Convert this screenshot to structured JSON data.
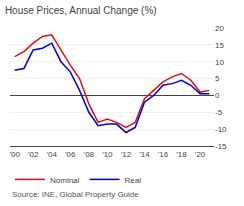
{
  "chart_data": {
    "type": "line",
    "title": "House Prices, Annual Change (%)",
    "x": [
      2000,
      2001,
      2002,
      2003,
      2004,
      2005,
      2006,
      2007,
      2008,
      2009,
      2010,
      2011,
      2012,
      2013,
      2014,
      2015,
      2016,
      2017,
      2018,
      2019,
      2020,
      2021
    ],
    "series": [
      {
        "name": "Nominal",
        "color": "#dd1111",
        "values": [
          11.5,
          13.0,
          15.5,
          17.5,
          18.0,
          13.5,
          9.0,
          5.0,
          -2.5,
          -8.0,
          -7.0,
          -8.0,
          -9.5,
          -8.0,
          -1.0,
          1.5,
          4.0,
          5.5,
          6.5,
          4.5,
          1.0,
          1.5
        ]
      },
      {
        "name": "Real",
        "color": "#0000cc",
        "values": [
          7.5,
          8.0,
          13.5,
          14.0,
          15.5,
          10.0,
          7.0,
          1.5,
          -5.0,
          -9.0,
          -8.5,
          -8.5,
          -11.0,
          -9.5,
          -2.0,
          0.0,
          3.0,
          3.5,
          4.5,
          3.0,
          0.5,
          0.5
        ]
      }
    ],
    "xlim": [
      1999.5,
      2021.5
    ],
    "xticks": [
      {
        "value": 2000,
        "label": "'00"
      },
      {
        "value": 2002,
        "label": "'02"
      },
      {
        "value": 2004,
        "label": "'04"
      },
      {
        "value": 2006,
        "label": "'06"
      },
      {
        "value": 2008,
        "label": "'08"
      },
      {
        "value": 2010,
        "label": "'10"
      },
      {
        "value": 2012,
        "label": "'12"
      },
      {
        "value": 2014,
        "label": "'14"
      },
      {
        "value": 2016,
        "label": "'16"
      },
      {
        "value": 2018,
        "label": "'18"
      },
      {
        "value": 2020,
        "label": "'20"
      }
    ],
    "ylim": [
      -15,
      20
    ],
    "yticks": [
      -15,
      -10,
      -5,
      0,
      5,
      10,
      15,
      20
    ],
    "grid": true,
    "legend": "bottom left",
    "annotations": [
      "Source: INE, Global Property Guide"
    ]
  }
}
